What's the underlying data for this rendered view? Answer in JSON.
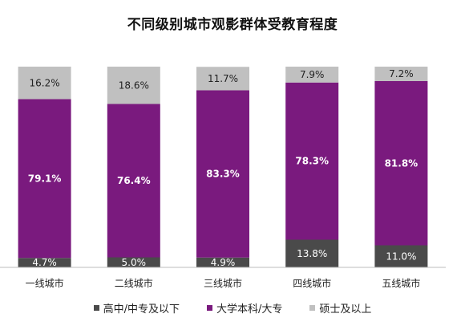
{
  "chart_data": {
    "type": "bar",
    "stacked": true,
    "percent": true,
    "title": "不同级别城市观影群体受教育程度",
    "categories": [
      "一线城市",
      "二线城市",
      "三线城市",
      "四线城市",
      "五线城市"
    ],
    "series": [
      {
        "name": "高中/中专及以下",
        "color": "#4a4a4a",
        "label_color": "#ffffff",
        "values": [
          4.7,
          5.0,
          4.9,
          13.8,
          11.0
        ]
      },
      {
        "name": "大学本科/大专",
        "color": "#7a1a7e",
        "label_color": "#ffffff",
        "values": [
          79.1,
          76.4,
          83.3,
          78.3,
          81.8
        ]
      },
      {
        "name": "硕士及以上",
        "color": "#c0c0c0",
        "label_color": "#222222",
        "values": [
          16.2,
          18.6,
          11.7,
          7.9,
          7.2
        ]
      }
    ],
    "labels": [
      [
        "4.7%",
        "5.0%",
        "4.9%",
        "13.8%",
        "11.0%"
      ],
      [
        "79.1%",
        "76.4%",
        "83.3%",
        "78.3%",
        "81.8%"
      ],
      [
        "16.2%",
        "18.6%",
        "11.7%",
        "7.9%",
        "7.2%"
      ]
    ],
    "ylim": [
      0,
      100
    ],
    "grid": false,
    "legend_position": "bottom"
  }
}
